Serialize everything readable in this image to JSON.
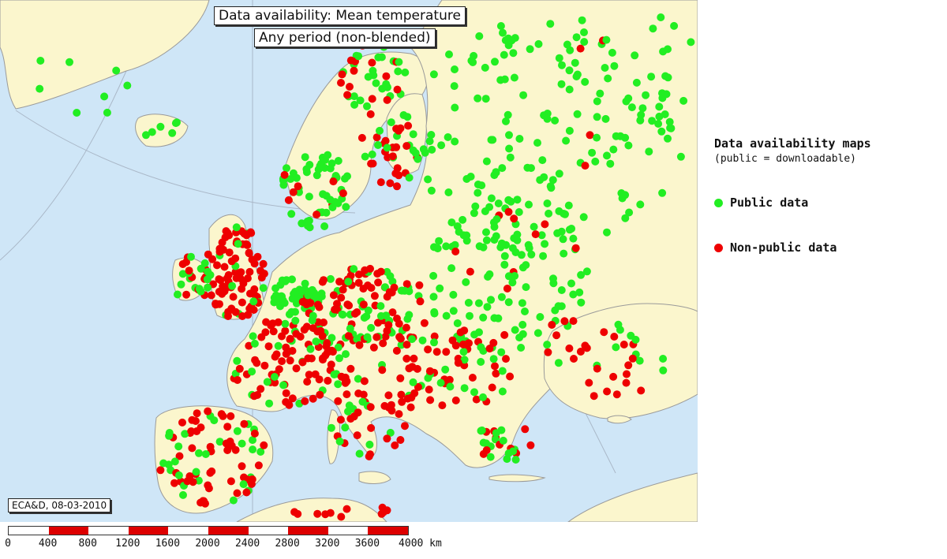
{
  "map": {
    "title_line1": "Data availability: Mean temperature",
    "title_line2": "Any period (non-blended)",
    "credit": "ECA&D, 08-03-2010",
    "colors": {
      "sea": "#cfe6f7",
      "land": "#fbf6cd",
      "public": "#22ee22",
      "nonpublic": "#ee0000"
    }
  },
  "legend": {
    "title": "Data availability maps",
    "subtitle": "(public = downloadable)",
    "items": [
      {
        "label": "Public data",
        "color": "#22ee22"
      },
      {
        "label": "Non-public data",
        "color": "#ee0000"
      }
    ]
  },
  "scale": {
    "unit": "km",
    "ticks": [
      "0",
      "400",
      "800",
      "1200",
      "1600",
      "2000",
      "2400",
      "2800",
      "3200",
      "3600",
      "4000 km"
    ]
  }
}
